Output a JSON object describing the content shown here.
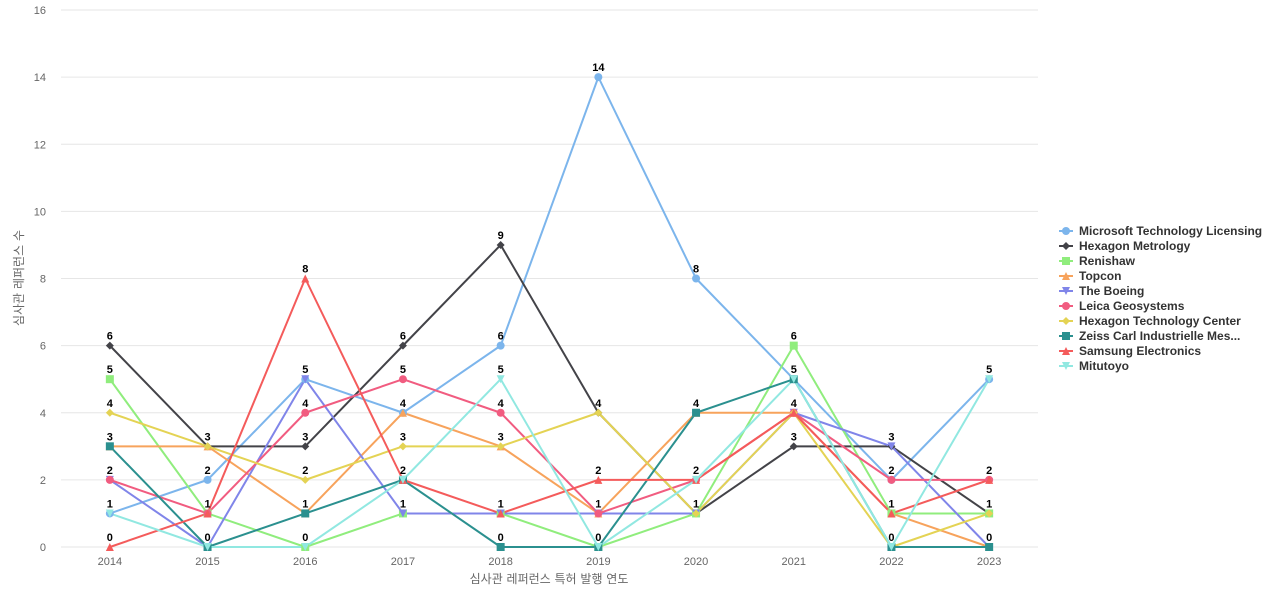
{
  "chart_data": {
    "type": "line",
    "xlabel": "심사관 레퍼런스 특허 발행 연도",
    "ylabel": "심사관 레퍼런스 수",
    "ylim": [
      0,
      16
    ],
    "yticks": [
      0,
      2,
      4,
      6,
      8,
      10,
      12,
      14,
      16
    ],
    "x": [
      "2014",
      "2015",
      "2016",
      "2017",
      "2018",
      "2019",
      "2020",
      "2021",
      "2022",
      "2023"
    ],
    "grid": true,
    "legend_position": "right",
    "series": [
      {
        "name": "Microsoft Technology Licensing",
        "color": "#7cb5ec",
        "marker": "circle",
        "values": [
          1,
          2,
          5,
          4,
          6,
          14,
          8,
          5,
          2,
          5
        ]
      },
      {
        "name": "Hexagon Metrology",
        "color": "#434348",
        "marker": "diamond",
        "values": [
          6,
          3,
          3,
          6,
          9,
          4,
          1,
          3,
          3,
          1
        ]
      },
      {
        "name": "Renishaw",
        "color": "#90ed7d",
        "marker": "square",
        "values": [
          5,
          1,
          0,
          1,
          1,
          0,
          1,
          6,
          1,
          1
        ]
      },
      {
        "name": "Topcon",
        "color": "#f7a35c",
        "marker": "triangle",
        "values": [
          3,
          3,
          1,
          4,
          3,
          1,
          4,
          4,
          1,
          0
        ]
      },
      {
        "name": "The Boeing",
        "color": "#8085e9",
        "marker": "triangle-down",
        "values": [
          2,
          0,
          5,
          1,
          1,
          1,
          1,
          4,
          3,
          0
        ]
      },
      {
        "name": "Leica Geosystems",
        "color": "#f15c80",
        "marker": "circle",
        "values": [
          2,
          1,
          4,
          5,
          4,
          1,
          2,
          4,
          2,
          2
        ]
      },
      {
        "name": "Hexagon Technology Center",
        "color": "#e4d354",
        "marker": "diamond",
        "values": [
          4,
          3,
          2,
          3,
          3,
          4,
          1,
          4,
          0,
          1
        ]
      },
      {
        "name": "Zeiss Carl Industrielle Mes...",
        "color": "#2b908f",
        "marker": "square",
        "values": [
          3,
          0,
          1,
          2,
          0,
          0,
          4,
          5,
          0,
          0
        ]
      },
      {
        "name": "Samsung Electronics",
        "color": "#f45b5b",
        "marker": "triangle",
        "values": [
          0,
          1,
          8,
          2,
          1,
          2,
          2,
          4,
          1,
          2
        ]
      },
      {
        "name": "Mitutoyo",
        "color": "#91e8e1",
        "marker": "triangle-down",
        "values": [
          1,
          0,
          0,
          2,
          5,
          0,
          2,
          5,
          0,
          5
        ]
      }
    ],
    "point_labels": [
      [
        "6",
        "5",
        "4",
        "3",
        "2",
        "1",
        "0"
      ],
      [
        "3",
        "2",
        "1",
        "0"
      ],
      [
        "8",
        "5",
        "4",
        "3",
        "2",
        "1",
        "0"
      ],
      [
        "6",
        "5",
        "4",
        "3",
        "2",
        "1"
      ],
      [
        "9",
        "6",
        "5",
        "4",
        "3",
        "1",
        "0"
      ],
      [
        "14",
        "4",
        "2",
        "1",
        "0"
      ],
      [
        "8",
        "4",
        "2",
        "1"
      ],
      [
        "6",
        "5",
        "4",
        "3"
      ],
      [
        "3",
        "2",
        "1",
        "0"
      ],
      [
        "5",
        "2",
        "1",
        "0"
      ]
    ]
  }
}
